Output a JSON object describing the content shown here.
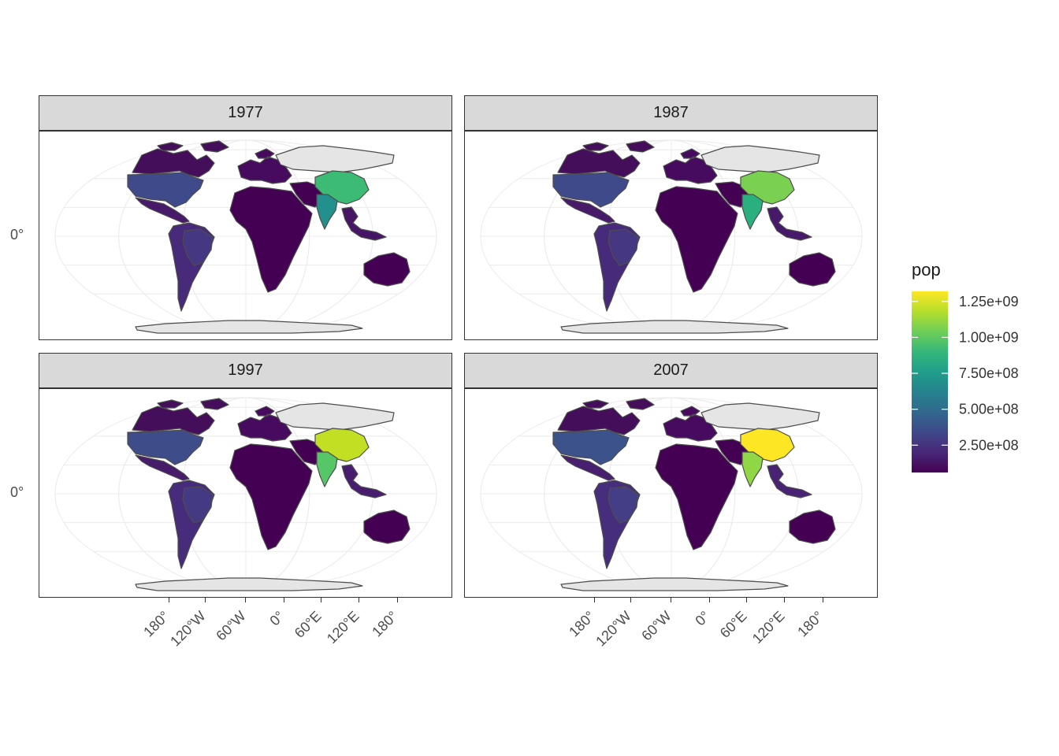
{
  "facets": [
    {
      "label": "1977",
      "fills": {
        "north_america_us": "#3f4a8a",
        "canada": "#440e5b",
        "mexico": "#471a6a",
        "south_america": "#472a7a",
        "brazil": "#453781",
        "africa": "#440154",
        "europe": "#460b5e",
        "russia": "#e5e5e5",
        "china": "#3cbb75",
        "india": "#22908c",
        "middle_east": "#440154",
        "southeast_asia": "#471565",
        "australia": "#440154",
        "antarctica": "#e5e5e5"
      }
    },
    {
      "label": "1987",
      "fills": {
        "north_america_us": "#3f4a8a",
        "canada": "#440e5b",
        "mexico": "#471a6a",
        "south_america": "#472a7a",
        "brazil": "#453781",
        "africa": "#440154",
        "europe": "#460b5e",
        "russia": "#e5e5e5",
        "china": "#7ad151",
        "india": "#2ab07f",
        "middle_east": "#440154",
        "southeast_asia": "#46196a",
        "australia": "#440154",
        "antarctica": "#e5e5e5"
      }
    },
    {
      "label": "1997",
      "fills": {
        "north_america_us": "#3e4c8a",
        "canada": "#440e5b",
        "mexico": "#471c6b",
        "south_america": "#472c7b",
        "brazil": "#443a83",
        "africa": "#440154",
        "europe": "#460b5e",
        "russia": "#e5e5e5",
        "china": "#c2df23",
        "india": "#56c667",
        "middle_east": "#440154",
        "southeast_asia": "#481d6f",
        "australia": "#440154",
        "antarctica": "#e5e5e5"
      }
    },
    {
      "label": "2007",
      "fills": {
        "north_america_us": "#3b528b",
        "canada": "#440e5b",
        "mexico": "#481f70",
        "south_america": "#472e7c",
        "brazil": "#433e85",
        "africa": "#440154",
        "europe": "#460b5e",
        "russia": "#e5e5e5",
        "china": "#fde725",
        "india": "#8fd744",
        "middle_east": "#440154",
        "southeast_asia": "#482273",
        "australia": "#440154",
        "antarctica": "#e5e5e5"
      }
    }
  ],
  "axis": {
    "y_labels": [
      "0°",
      "0°"
    ],
    "x_ticks": [
      "180°",
      "120°W",
      "60°W",
      "0°",
      "60°E",
      "120°E",
      "180°"
    ]
  },
  "legend": {
    "title": "pop",
    "labels": [
      "1.25e+09",
      "1.00e+09",
      "7.50e+08",
      "5.00e+08",
      "2.50e+08"
    ],
    "values": [
      1250000000,
      1000000000,
      750000000,
      500000000,
      250000000
    ],
    "range": [
      60000000,
      1320000000
    ],
    "colors": [
      "#440154",
      "#482878",
      "#3e4989",
      "#31688e",
      "#26828e",
      "#1f9e89",
      "#35b779",
      "#6ece58",
      "#b5de2b",
      "#fde725"
    ]
  },
  "colors": {
    "border": "#4d4d4d",
    "graticule": "#ebebeb",
    "missing": "#e5e5e5"
  }
}
